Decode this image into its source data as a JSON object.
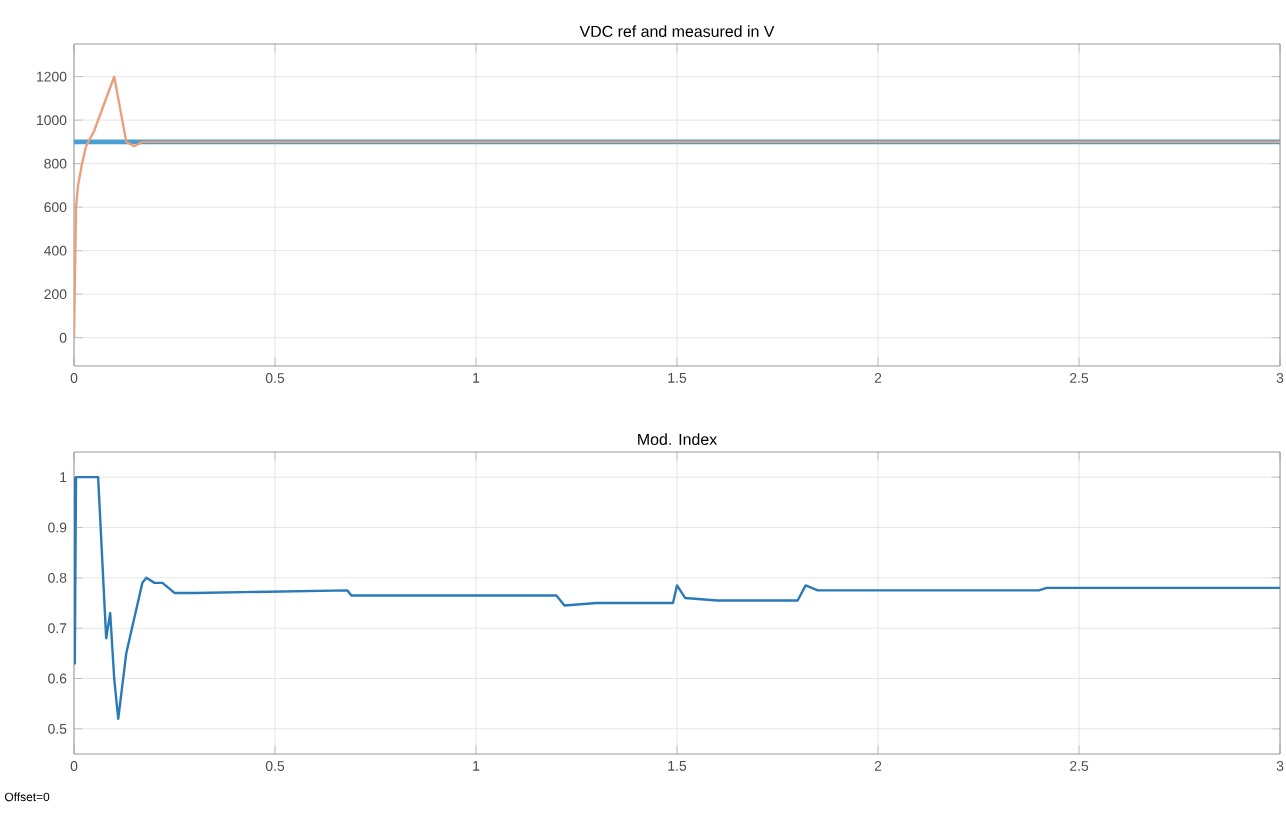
{
  "chart_data": [
    {
      "type": "line",
      "title": "VDC ref and measured in V",
      "xlim": [
        0,
        3
      ],
      "xticks": [
        0,
        0.5,
        1,
        1.5,
        2,
        2.5,
        3
      ],
      "ylim": [
        -130,
        1350
      ],
      "yticks": [
        0,
        200,
        400,
        600,
        800,
        1000,
        1200
      ],
      "grid": true,
      "series": [
        {
          "color": "#4a9fd0",
          "x": [
            0,
            3
          ],
          "values": [
            900,
            900
          ]
        },
        {
          "color": "#e8a07a",
          "x": [
            0,
            0.005,
            0.01,
            0.02,
            0.03,
            0.05,
            0.07,
            0.09,
            0.1,
            0.12,
            0.13,
            0.15,
            0.17,
            0.2,
            3
          ],
          "values": [
            0,
            600,
            700,
            800,
            880,
            950,
            1050,
            1150,
            1200,
            1000,
            900,
            880,
            900,
            900,
            900
          ]
        }
      ]
    },
    {
      "type": "line",
      "title": "Mod. Index",
      "xlim": [
        0,
        3
      ],
      "xticks": [
        0,
        0.5,
        1,
        1.5,
        2,
        2.5,
        3
      ],
      "ylim": [
        0.45,
        1.05
      ],
      "yticks": [
        0.5,
        0.6,
        0.7,
        0.8,
        0.9,
        1
      ],
      "grid": true,
      "annotations": [
        "Offset=0"
      ],
      "series": [
        {
          "color": "#2a7ab8",
          "x": [
            0,
            0.002,
            0.005,
            0.06,
            0.08,
            0.09,
            0.1,
            0.11,
            0.13,
            0.15,
            0.17,
            0.18,
            0.2,
            0.22,
            0.25,
            0.3,
            0.68,
            0.69,
            1.2,
            1.22,
            1.3,
            1.49,
            1.5,
            1.52,
            1.6,
            1.8,
            1.82,
            1.85,
            2.4,
            2.42,
            3
          ],
          "values": [
            1,
            0.63,
            1,
            1,
            0.68,
            0.73,
            0.6,
            0.52,
            0.65,
            0.72,
            0.79,
            0.8,
            0.79,
            0.79,
            0.77,
            0.77,
            0.775,
            0.765,
            0.765,
            0.745,
            0.75,
            0.75,
            0.785,
            0.76,
            0.755,
            0.755,
            0.785,
            0.775,
            0.775,
            0.78,
            0.78
          ]
        }
      ]
    }
  ]
}
